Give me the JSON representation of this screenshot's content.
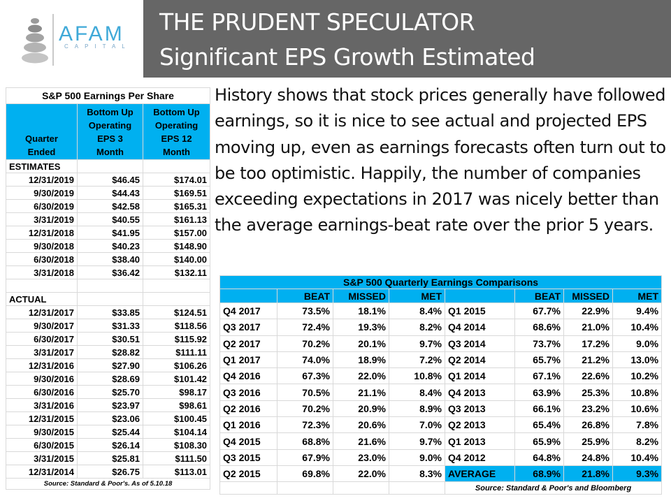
{
  "header": {
    "logo_text": "AFAM",
    "logo_sub": "CAPITAL",
    "title_line1": "THE PRUDENT SPECULATOR",
    "title_line2": "Significant EPS Growth Estimated"
  },
  "paragraph": "History shows that stock prices generally have followed earnings, so it is nice to see actual and projected EPS moving up, even as earnings forecasts often turn out to be too optimistic. Happily, the number of companies exceeding expectations in 2017 was nicely better than the average earnings-beat rate over the prior 5 years.",
  "eps_table": {
    "title": "S&P 500 Earnings Per Share",
    "headers": [
      "Quarter Ended",
      "Bottom Up Operating EPS 3 Month",
      "Bottom Up Operating EPS 12 Month"
    ],
    "header_lines": [
      [
        "",
        "Bottom Up",
        "Bottom Up"
      ],
      [
        "",
        "Operating",
        "Operating"
      ],
      [
        "Quarter",
        "EPS 3",
        "EPS 12"
      ],
      [
        "Ended",
        "Month",
        "Month"
      ]
    ],
    "estimates_label": "ESTIMATES",
    "estimates": [
      [
        "12/31/2019",
        "$46.45",
        "$174.01"
      ],
      [
        "9/30/2019",
        "$44.43",
        "$169.51"
      ],
      [
        "6/30/2019",
        "$42.58",
        "$165.31"
      ],
      [
        "3/31/2019",
        "$40.55",
        "$161.13"
      ],
      [
        "12/31/2018",
        "$41.95",
        "$157.00"
      ],
      [
        "9/30/2018",
        "$40.23",
        "$148.90"
      ],
      [
        "6/30/2018",
        "$38.40",
        "$140.00"
      ],
      [
        "3/31/2018",
        "$36.42",
        "$132.11"
      ]
    ],
    "actual_label": "ACTUAL",
    "actual": [
      [
        "12/31/2017",
        "$33.85",
        "$124.51"
      ],
      [
        "9/30/2017",
        "$31.33",
        "$118.56"
      ],
      [
        "6/30/2017",
        "$30.51",
        "$115.92"
      ],
      [
        "3/31/2017",
        "$28.82",
        "$111.11"
      ],
      [
        "12/31/2016",
        "$27.90",
        "$106.26"
      ],
      [
        "9/30/2016",
        "$28.69",
        "$101.42"
      ],
      [
        "6/30/2016",
        "$25.70",
        "$98.17"
      ],
      [
        "3/31/2016",
        "$23.97",
        "$98.61"
      ],
      [
        "12/31/2015",
        "$23.06",
        "$100.45"
      ],
      [
        "9/30/2015",
        "$25.44",
        "$104.14"
      ],
      [
        "6/30/2015",
        "$26.14",
        "$108.30"
      ],
      [
        "3/31/2015",
        "$25.81",
        "$111.50"
      ],
      [
        "12/31/2014",
        "$26.75",
        "$113.01"
      ]
    ],
    "source": "Source: Standard & Poor's. As of 5.10.18"
  },
  "comparisons_table": {
    "title": "S&P 500 Quarterly Earnings Comparisons",
    "columns": [
      "",
      "BEAT",
      "MISSED",
      "MET",
      "",
      "BEAT",
      "MISSED",
      "MET"
    ],
    "rows": [
      [
        "Q4 2017",
        "73.5%",
        "18.1%",
        "8.4%",
        "Q1 2015",
        "67.7%",
        "22.9%",
        "9.4%"
      ],
      [
        "Q3 2017",
        "72.4%",
        "19.3%",
        "8.2%",
        "Q4 2014",
        "68.6%",
        "21.0%",
        "10.4%"
      ],
      [
        "Q2 2017",
        "70.2%",
        "20.1%",
        "9.7%",
        "Q3 2014",
        "73.7%",
        "17.2%",
        "9.0%"
      ],
      [
        "Q1 2017",
        "74.0%",
        "18.9%",
        "7.2%",
        "Q2 2014",
        "65.7%",
        "21.2%",
        "13.0%"
      ],
      [
        "Q4 2016",
        "67.3%",
        "22.0%",
        "10.8%",
        "Q1 2014",
        "67.1%",
        "22.6%",
        "10.2%"
      ],
      [
        "Q3 2016",
        "70.5%",
        "21.1%",
        "8.4%",
        "Q4 2013",
        "63.9%",
        "25.3%",
        "10.8%"
      ],
      [
        "Q2 2016",
        "70.2%",
        "20.9%",
        "8.9%",
        "Q3 2013",
        "66.1%",
        "23.2%",
        "10.6%"
      ],
      [
        "Q1 2016",
        "72.3%",
        "20.6%",
        "7.0%",
        "Q2 2013",
        "65.4%",
        "26.8%",
        "7.8%"
      ],
      [
        "Q4 2015",
        "68.8%",
        "21.6%",
        "9.7%",
        "Q1 2013",
        "65.9%",
        "25.9%",
        "8.2%"
      ],
      [
        "Q3 2015",
        "67.9%",
        "23.0%",
        "9.0%",
        "Q4 2012",
        "64.8%",
        "24.8%",
        "10.4%"
      ],
      [
        "Q2 2015",
        "69.8%",
        "22.0%",
        "8.3%",
        "AVERAGE",
        "68.9%",
        "21.8%",
        "9.3%"
      ]
    ],
    "source": "Source: Standard & Poor's and Bloomberg"
  },
  "colors": {
    "header_band": "#666666",
    "table_header": "#00b0f0",
    "logo_blue": "#3fa9d8"
  }
}
